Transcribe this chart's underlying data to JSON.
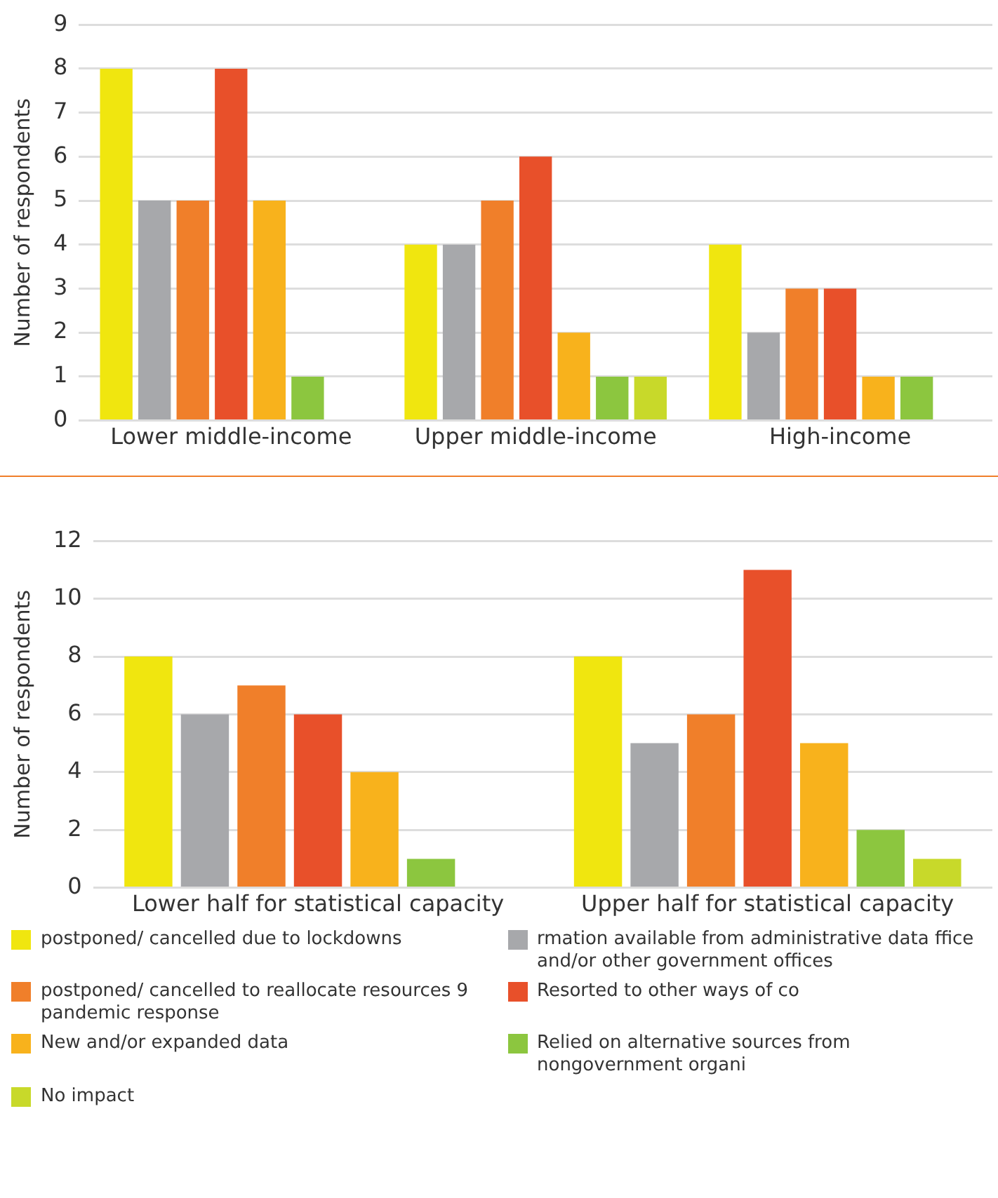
{
  "chart_data": [
    {
      "type": "bar",
      "ylabel": "Number of respondents",
      "categories": [
        "Lower middle-income",
        "Upper middle-income",
        "High-income"
      ],
      "ylim": [
        0,
        9
      ],
      "yticks": [
        0,
        1,
        2,
        3,
        4,
        5,
        6,
        7,
        8,
        9
      ],
      "grid": "y",
      "legend": false,
      "series": [
        {
          "color": "#f0e60f",
          "values": [
            8,
            4,
            4
          ]
        },
        {
          "color": "#a7a8ab",
          "values": [
            5,
            4,
            2
          ]
        },
        {
          "color": "#f07f2a",
          "values": [
            5,
            5,
            3
          ]
        },
        {
          "color": "#e8502a",
          "values": [
            8,
            6,
            3
          ]
        },
        {
          "color": "#f8b21c",
          "values": [
            5,
            2,
            1
          ]
        },
        {
          "color": "#8cc63f",
          "values": [
            1,
            1,
            1
          ]
        },
        {
          "color": "#c8d92a",
          "values": [
            null,
            1,
            null
          ]
        }
      ]
    },
    {
      "type": "bar",
      "ylabel": "Number of respondents",
      "categories": [
        "Lower half for statistical capacity",
        "Upper half for statistical capacity"
      ],
      "ylim": [
        0,
        12
      ],
      "yticks": [
        0,
        2,
        4,
        6,
        8,
        10,
        12
      ],
      "grid": "y",
      "legend": "bottom",
      "series": [
        {
          "name": "postponed/ cancelled due to lockdowns",
          "color": "#f0e60f",
          "values": [
            8,
            8
          ]
        },
        {
          "name": "rmation available from administrative data ffice and/or other government offices",
          "color": "#a7a8ab",
          "values": [
            6,
            5
          ]
        },
        {
          "name": "postponed/ cancelled to reallocate resources 9 pandemic response",
          "color": "#f07f2a",
          "values": [
            7,
            6
          ]
        },
        {
          "name": "Resorted to other ways of co",
          "color": "#e8502a",
          "values": [
            6,
            11
          ]
        },
        {
          "name": "New and/or expanded data",
          "color": "#f8b21c",
          "values": [
            4,
            5
          ]
        },
        {
          "name": "Relied on alternative sources from nongovernment organi",
          "color": "#8cc63f",
          "values": [
            1,
            2
          ]
        },
        {
          "name": "No impact",
          "color": "#c8d92a",
          "values": [
            null,
            1
          ]
        }
      ]
    }
  ]
}
